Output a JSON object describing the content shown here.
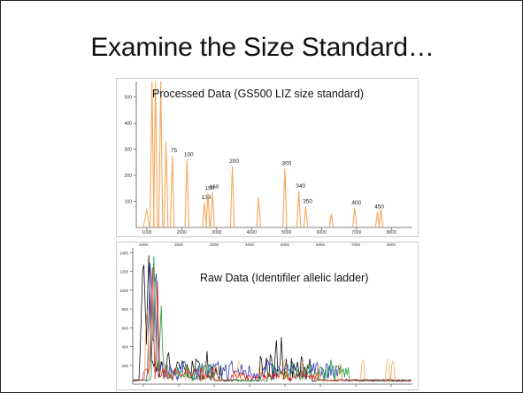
{
  "slide": {
    "title": "Examine the Size Standard…"
  },
  "chart_data": [
    {
      "type": "line",
      "title": "Processed Data (GS500 LIZ size standard)",
      "xlim": [
        700,
        8600
      ],
      "ylim": [
        0,
        560
      ],
      "x_ticks": [
        1000,
        2000,
        3000,
        4000,
        5000,
        6000,
        7000,
        8000
      ],
      "y_ticks": [
        100,
        200,
        300,
        400,
        500
      ],
      "series": [
        {
          "color": "#f5a85a",
          "peaks": [
            {
              "x": 1150,
              "y": 560
            },
            {
              "x": 1250,
              "y": 560
            },
            {
              "x": 1400,
              "y": 560
            },
            {
              "x": 1550,
              "y": 330
            },
            {
              "x": 1730,
              "y": 275,
              "label": "75"
            },
            {
              "x": 2150,
              "y": 260,
              "label": "100"
            },
            {
              "x": 2650,
              "y": 95,
              "label": "139"
            },
            {
              "x": 2750,
              "y": 130,
              "label": "150"
            },
            {
              "x": 2880,
              "y": 135,
              "label": "160"
            },
            {
              "x": 3450,
              "y": 235,
              "label": "200"
            },
            {
              "x": 4200,
              "y": 115
            },
            {
              "x": 4950,
              "y": 225,
              "label": "300"
            },
            {
              "x": 5350,
              "y": 140,
              "label": "340"
            },
            {
              "x": 5550,
              "y": 80,
              "label": "350"
            },
            {
              "x": 6280,
              "y": 52
            },
            {
              "x": 6950,
              "y": 75,
              "label": "400"
            },
            {
              "x": 7600,
              "y": 60,
              "label": "450"
            },
            {
              "x": 7700,
              "y": 70
            }
          ]
        }
      ]
    },
    {
      "type": "line",
      "title": "Raw Data (Identifiler allelic ladder)",
      "xlim": [
        700,
        8600
      ],
      "ylim": [
        0,
        1450
      ],
      "x_ticks": [
        1000,
        2000,
        3000,
        4000,
        5000,
        6000,
        7000,
        8000
      ],
      "y_ticks": [
        200,
        400,
        600,
        800,
        1000,
        1200,
        1400
      ],
      "series": [
        {
          "color": "#111111"
        },
        {
          "color": "#2a3fbf"
        },
        {
          "color": "#1f9d3a"
        },
        {
          "color": "#e0271f"
        },
        {
          "color": "#f5a85a"
        }
      ]
    }
  ]
}
